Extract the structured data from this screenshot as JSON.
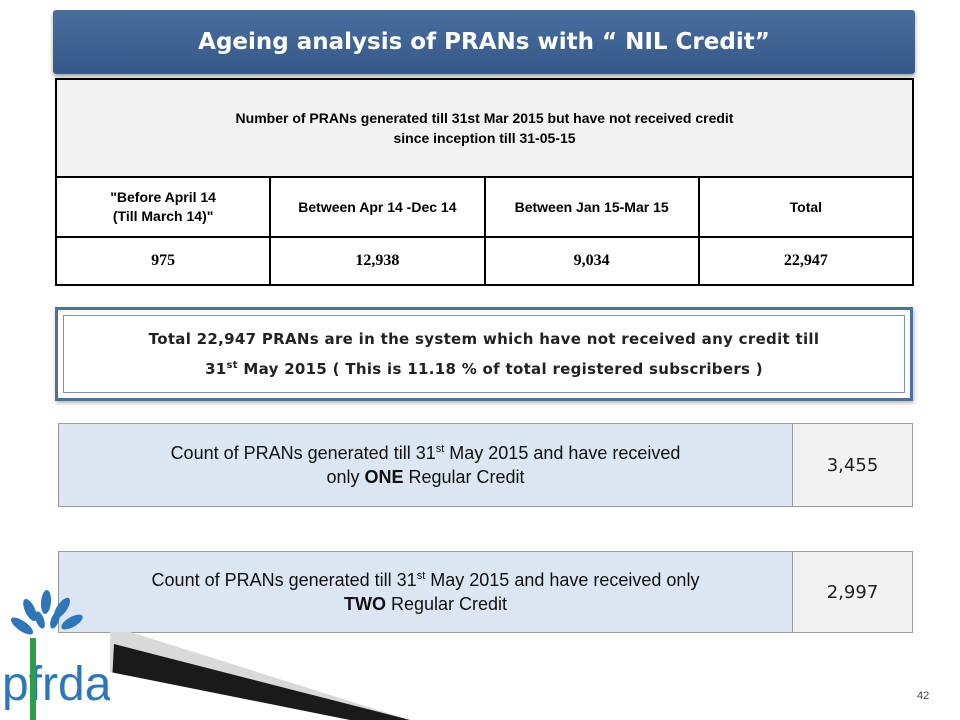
{
  "title": "Ageing analysis of PRANs with “ NIL Credit”",
  "table": {
    "header_line1": "Number of PRANs generated till 31st Mar 2015 but have not received credit",
    "header_line2": "since inception till 31-05-15",
    "columns": [
      {
        "line1": "\"Before April 14",
        "line2": "(Till March 14)\""
      },
      {
        "line1": "Between  Apr 14 -Dec 14",
        "line2": ""
      },
      {
        "line1": "Between Jan 15-Mar 15",
        "line2": ""
      },
      {
        "line1": "Total",
        "line2": ""
      }
    ],
    "values": [
      "975",
      "12,938",
      "9,034",
      "22,947"
    ]
  },
  "note": {
    "line1": "Total 22,947 PRANs are in the system which have not received any credit till",
    "line2_pre": "31",
    "line2_sup": "st",
    "line2_post": " May 2015  ( This is 11.18 % of total registered subscribers )"
  },
  "count_one": {
    "pre": "Count of PRANs generated till 31",
    "sup": "st",
    "mid": "  May 2015 and have received",
    "line2_pre": "only ",
    "bold": "ONE",
    "line2_post": " Regular Credit",
    "value": "3,455"
  },
  "count_two": {
    "pre": "Count of PRANs generated till 31",
    "sup": "st",
    "mid": " May 2015 and have received only",
    "bold": "TWO",
    "line2_post": " Regular Credit",
    "value": "2,997"
  },
  "logo_text": "pfrda",
  "page_number": "42",
  "colors": {
    "title_bar": "#3d6493",
    "count_left_bg": "#dce6f2",
    "logo": "#2f76b9"
  }
}
